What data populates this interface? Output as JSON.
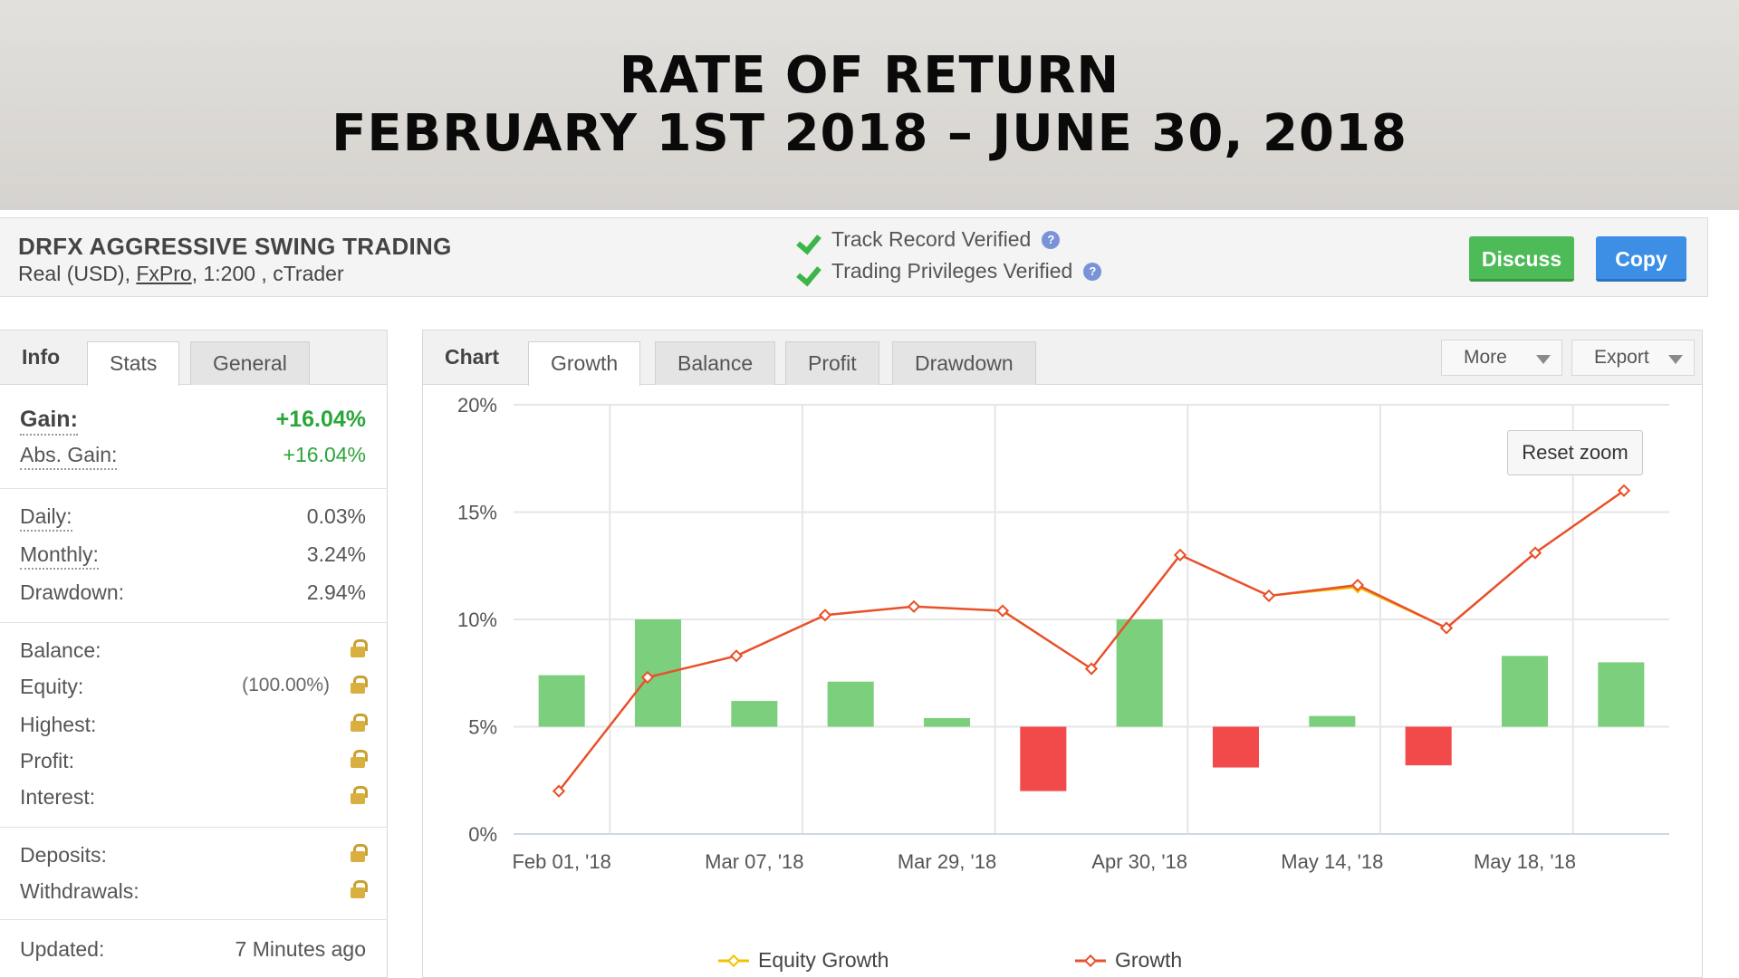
{
  "slide": {
    "title_line1": "RATE OF RETURN",
    "title_line2": "FEBRUARY 1ST 2018 – JUNE 30, 2018"
  },
  "header": {
    "system_name": "DRFX AGGRESSIVE SWING TRADING",
    "account_prefix": "Real (USD), ",
    "broker": "FxPro",
    "account_suffix": ", 1:200 , cTrader",
    "verified_track": "Track Record Verified",
    "verified_privileges": "Trading Privileges Verified",
    "help_icon": "question-icon",
    "discuss_label": "Discuss",
    "copy_label": "Copy"
  },
  "info": {
    "tabs": [
      "Info",
      "Stats",
      "General"
    ],
    "gain_label": "Gain:",
    "gain_value": "+16.04%",
    "abs_gain_label": "Abs. Gain:",
    "abs_gain_value": "+16.04%",
    "daily_label": "Daily:",
    "daily_value": "0.03%",
    "monthly_label": "Monthly:",
    "monthly_value": "3.24%",
    "drawdown_label": "Drawdown:",
    "drawdown_value": "2.94%",
    "balance_label": "Balance:",
    "equity_label": "Equity:",
    "equity_pct": "(100.00%)",
    "highest_label": "Highest:",
    "profit_label": "Profit:",
    "interest_label": "Interest:",
    "deposits_label": "Deposits:",
    "withdrawals_label": "Withdrawals:",
    "updated_label": "Updated:",
    "updated_value": "7 Minutes ago",
    "lock_icon": "lock-icon",
    "accent_green": "#2aa63a"
  },
  "chart_panel": {
    "label": "Chart",
    "tabs": [
      "Growth",
      "Balance",
      "Profit",
      "Drawdown"
    ],
    "more_label": "More",
    "export_label": "Export",
    "reset_zoom_label": "Reset zoom"
  },
  "chart_data": {
    "type": "bar",
    "title": "",
    "xlabel": "",
    "ylabel": "",
    "ylim": [
      0,
      20
    ],
    "yticks": [
      0,
      5,
      10,
      15,
      20
    ],
    "ytick_labels": [
      "0%",
      "5%",
      "10%",
      "15%",
      "20%"
    ],
    "xtick_labels": [
      "Feb 01, '18",
      "Mar 07, '18",
      "Mar 29, '18",
      "Apr 30, '18",
      "May 14, '18",
      "May 18, '18"
    ],
    "grid": true,
    "legend_position": "bottom",
    "bar_baseline": 5,
    "bar_values": [
      7.4,
      10.0,
      6.2,
      7.1,
      5.4,
      2.0,
      10.0,
      3.1,
      5.5,
      3.2,
      8.3,
      8.0
    ],
    "bar_colors": {
      "positive": "#7ccf7c",
      "negative": "#f24a4a"
    },
    "series": [
      {
        "name": "Equity Growth",
        "color": "#f2c200",
        "values": [
          2.0,
          7.3,
          8.3,
          10.2,
          10.6,
          10.4,
          7.7,
          13.0,
          11.1,
          11.5,
          9.6,
          13.1,
          16.0
        ]
      },
      {
        "name": "Growth",
        "color": "#e8512c",
        "values": [
          2.0,
          7.3,
          8.3,
          10.2,
          10.6,
          10.4,
          7.7,
          13.0,
          11.1,
          11.6,
          9.6,
          13.1,
          16.0
        ]
      }
    ]
  }
}
